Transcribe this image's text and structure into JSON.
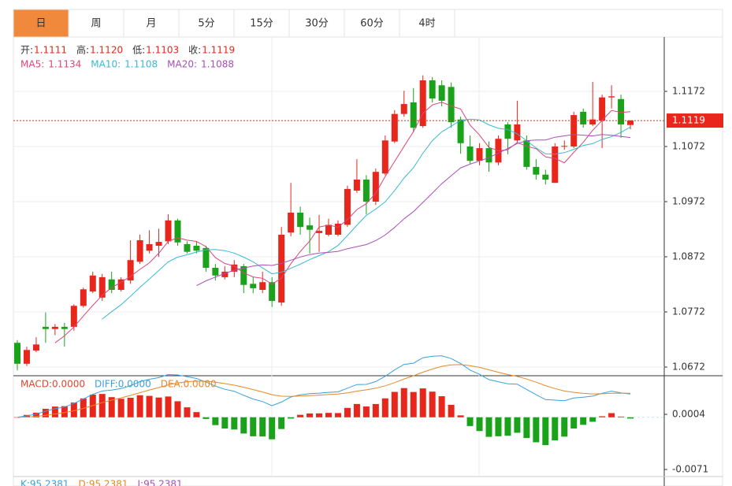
{
  "chart_data": {
    "type": "candlestick",
    "tabs": [
      "日",
      "周",
      "月",
      "5分",
      "15分",
      "30分",
      "60分",
      "4时"
    ],
    "active_tab": 0,
    "header": [
      {
        "label": "开:",
        "value": "1.1111"
      },
      {
        "label": "高:",
        "value": "1.1120"
      },
      {
        "label": "低:",
        "value": "1.1103"
      },
      {
        "label": "收:",
        "value": "1.1119"
      }
    ],
    "up_color": "#e8261c",
    "down_color": "#1aa31a",
    "candles": {
      "open": [
        1.0716,
        1.0678,
        1.0702,
        1.0745,
        1.0741,
        1.0745,
        1.0745,
        1.0783,
        1.0809,
        1.0798,
        1.0831,
        1.0812,
        1.0829,
        1.0863,
        1.0883,
        1.0892,
        1.09,
        1.0938,
        1.0895,
        1.0892,
        1.0888,
        1.0852,
        1.0835,
        1.0845,
        1.0855,
        1.0823,
        1.0812,
        1.0826,
        1.0789,
        1.0916,
        1.0952,
        1.0929,
        1.0915,
        1.0912,
        1.0912,
        1.093,
        1.0992,
        1.1012,
        1.0972,
        1.1023,
        1.1081,
        1.1131,
        1.1152,
        1.1109,
        1.1192,
        1.1183,
        1.118,
        1.1121,
        1.1072,
        1.1046,
        1.1069,
        1.1043,
        1.1112,
        1.1083,
        1.1083,
        1.1035,
        1.1021,
        1.1006,
        1.1072,
        1.1072,
        1.1135,
        1.1112,
        1.1119,
        1.1161,
        1.1158,
        1.1111
      ],
      "high": [
        1.0721,
        1.0709,
        1.0726,
        1.0771,
        1.075,
        1.0752,
        1.0786,
        1.0816,
        1.0845,
        1.0841,
        1.0845,
        1.0835,
        1.0902,
        1.0912,
        1.092,
        1.0923,
        1.0949,
        1.0941,
        1.09,
        1.09,
        1.0892,
        1.0859,
        1.0855,
        1.0866,
        1.0859,
        1.0835,
        1.0845,
        1.0835,
        1.0926,
        1.1006,
        1.0963,
        1.0943,
        1.0948,
        1.0941,
        1.0938,
        1.1001,
        1.1049,
        1.102,
        1.1032,
        1.1092,
        1.1138,
        1.1173,
        1.1178,
        1.1201,
        1.1198,
        1.1192,
        1.1188,
        1.1126,
        1.1092,
        1.1078,
        1.1081,
        1.1092,
        1.1116,
        1.1155,
        1.1092,
        1.1049,
        1.103,
        1.1078,
        1.1083,
        1.1135,
        1.1141,
        1.1189,
        1.1166,
        1.1183,
        1.1166,
        1.112
      ],
      "low": [
        1.0666,
        1.0674,
        1.0699,
        1.0716,
        1.073,
        1.0709,
        1.0738,
        1.078,
        1.0806,
        1.0792,
        1.0806,
        1.0809,
        1.0823,
        1.0859,
        1.0878,
        1.0872,
        1.0895,
        1.0892,
        1.0878,
        1.0878,
        1.0845,
        1.0829,
        1.0831,
        1.0835,
        1.0806,
        1.0806,
        1.0806,
        1.0781,
        1.0783,
        1.0909,
        1.0912,
        1.0878,
        1.0881,
        1.0909,
        1.0909,
        1.0926,
        1.0988,
        1.0949,
        1.0966,
        1.102,
        1.1078,
        1.1126,
        1.1098,
        1.1106,
        1.1152,
        1.1145,
        1.1106,
        1.1059,
        1.1041,
        1.1038,
        1.1026,
        1.1038,
        1.1058,
        1.1078,
        1.103,
        1.1012,
        1.1003,
        1.1006,
        1.1066,
        1.1069,
        1.1106,
        1.1109,
        1.1069,
        1.1141,
        1.1088,
        1.1103
      ],
      "close": [
        1.0678,
        1.0703,
        1.0713,
        1.0741,
        1.0745,
        1.0741,
        1.0783,
        1.0813,
        1.0838,
        1.0835,
        1.0812,
        1.0831,
        1.0866,
        1.0902,
        1.0895,
        1.0899,
        1.0938,
        1.0898,
        1.0881,
        1.0883,
        1.0852,
        1.0838,
        1.0845,
        1.0858,
        1.0821,
        1.0815,
        1.0826,
        1.0792,
        1.0912,
        1.0952,
        1.0926,
        1.0921,
        1.0919,
        1.093,
        1.0932,
        1.0995,
        1.1012,
        1.0972,
        1.1026,
        1.1083,
        1.1131,
        1.1149,
        1.1106,
        1.1192,
        1.1159,
        1.1155,
        1.1116,
        1.1078,
        1.1046,
        1.1069,
        1.1043,
        1.1086,
        1.1086,
        1.1112,
        1.1035,
        1.1021,
        1.1012,
        1.1072,
        1.1073,
        1.1129,
        1.1112,
        1.1121,
        1.1161,
        1.1163,
        1.1112,
        1.1119
      ]
    },
    "ylim": [
      1.06563,
      1.12691
    ],
    "yticks": [
      1.1172,
      1.1072,
      1.0972,
      1.0872,
      1.0772,
      1.0672
    ],
    "last_price": 1.1119,
    "ma": [
      {
        "name": "MA5:",
        "period": 5,
        "color": "#d9467a",
        "value": "1.1134"
      },
      {
        "name": "MA10:",
        "period": 10,
        "color": "#3bb8d4",
        "value": "1.1108"
      },
      {
        "name": "MA20:",
        "period": 20,
        "color": "#a84fb8",
        "value": "1.1088"
      }
    ],
    "macd": {
      "labels": [
        {
          "label": "MACD:",
          "value": "0.0000",
          "color": "#e0452e"
        },
        {
          "label": "DIFF:",
          "value": "0.0000",
          "color": "#3aa0dc"
        },
        {
          "label": "DEA:",
          "value": "0.0000",
          "color": "#e5892a"
        }
      ],
      "ylim": [
        -0.00806,
        0.00565
      ],
      "yticks": [
        0.0004,
        -0.0071
      ]
    },
    "kdj": [
      {
        "label": "K:",
        "value": "95.2381"
      },
      {
        "label": "D:",
        "value": "95.2381"
      },
      {
        "label": "J:",
        "value": "95.2381"
      }
    ]
  }
}
